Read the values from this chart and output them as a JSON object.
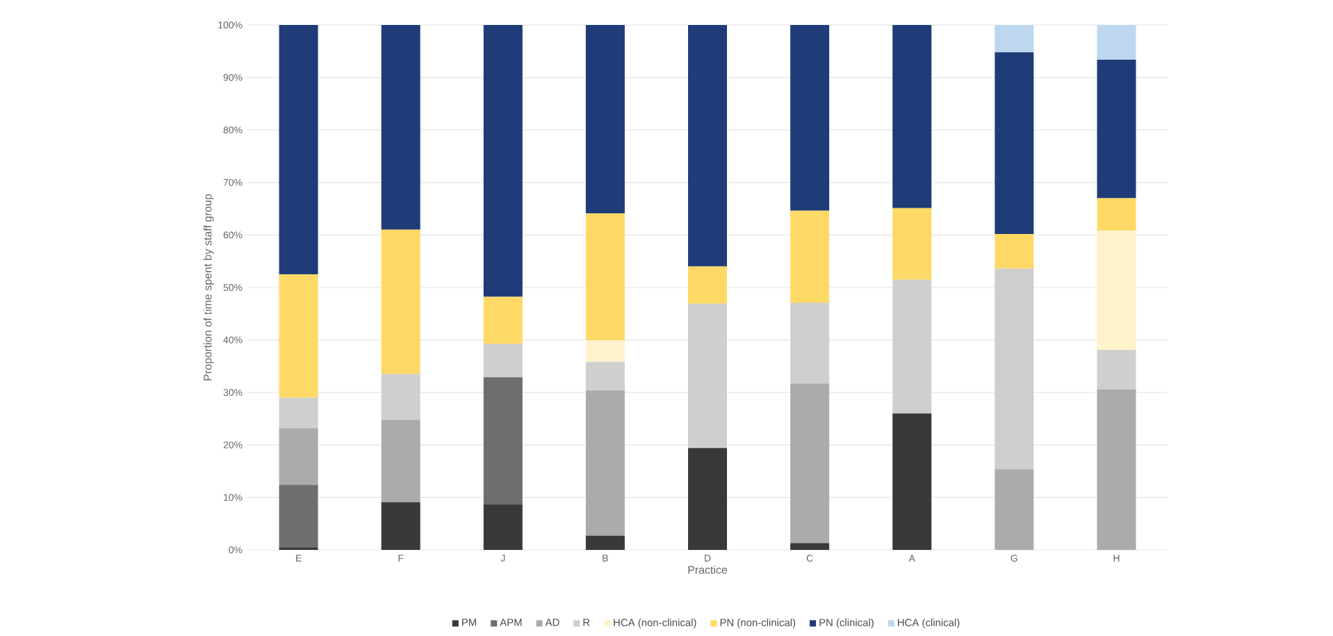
{
  "chart_data": {
    "type": "bar",
    "stacked": true,
    "xlabel": "Practice",
    "ylabel": "Proportion of time spent by staff group",
    "categories": [
      "E",
      "F",
      "J",
      "B",
      "D",
      "C",
      "A",
      "G",
      "H"
    ],
    "ylim": [
      0,
      100
    ],
    "yticks": [
      {
        "value": 0,
        "label": "0%"
      },
      {
        "value": 10,
        "label": "10%"
      },
      {
        "value": 20,
        "label": "20%"
      },
      {
        "value": 30,
        "label": "30%"
      },
      {
        "value": 40,
        "label": "40%"
      },
      {
        "value": 50,
        "label": "50%"
      },
      {
        "value": 60,
        "label": "60%"
      },
      {
        "value": 70,
        "label": "70%"
      },
      {
        "value": 80,
        "label": "80%"
      },
      {
        "value": 90,
        "label": "90%"
      },
      {
        "value": 100,
        "label": "100%"
      }
    ],
    "grid": "y",
    "legend": "bottom",
    "series": [
      {
        "name": "PM",
        "color": "#3a3838",
        "values": [
          0.5,
          9.1,
          8.7,
          2.7,
          19.4,
          1.3,
          26,
          0,
          0
        ]
      },
      {
        "name": "APM",
        "color": "#706d6d",
        "values": [
          11.9,
          0,
          24.2,
          0,
          0,
          0,
          0,
          0,
          0
        ]
      },
      {
        "name": "AD",
        "color": "#adaaaa",
        "values": [
          10.8,
          15.7,
          0,
          27.7,
          0,
          30.4,
          0,
          15.4,
          30.6
        ]
      },
      {
        "name": "R",
        "color": "#d0cfcf",
        "values": [
          5.8,
          8.7,
          6.4,
          5.4,
          27.5,
          15.4,
          25.5,
          38.2,
          7.5
        ]
      },
      {
        "name": "HCA (non-clinical)",
        "color": "#fff2cc",
        "values": [
          0,
          0,
          0,
          4.1,
          0,
          0,
          0,
          0,
          22.7
        ]
      },
      {
        "name": "PN (non-clinical)",
        "color": "#ffd966",
        "values": [
          23.5,
          27.5,
          8.9,
          24.2,
          7.1,
          17.5,
          13.6,
          6.6,
          6.2
        ]
      },
      {
        "name": "PN (clinical)",
        "color": "#1f3c78",
        "values": [
          47.5,
          39,
          51.8,
          35.9,
          46,
          35.4,
          34.9,
          34.6,
          26.4
        ]
      },
      {
        "name": "HCA (clinical)",
        "color": "#bdd7ee",
        "values": [
          0,
          0,
          0,
          0,
          0,
          0,
          0,
          5.2,
          6.6
        ]
      }
    ]
  }
}
